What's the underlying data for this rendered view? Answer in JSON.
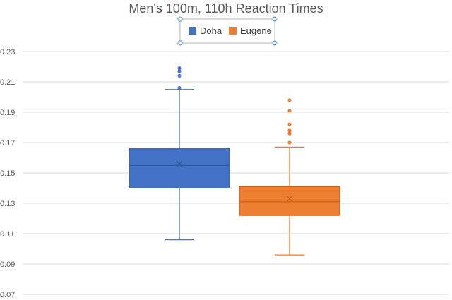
{
  "chart_data": {
    "type": "box",
    "title": "Men's 100m, 110h Reaction Times",
    "xlabel": "",
    "ylabel": "",
    "ylim": [
      0.07,
      0.23
    ],
    "y_ticks": [
      "0.07",
      "0.09",
      "0.11",
      "0.13",
      "0.15",
      "0.17",
      "0.19",
      "0.21",
      "0.23"
    ],
    "grid": true,
    "legend_position": "top",
    "series": [
      {
        "name": "Doha",
        "color": "#4472C4",
        "whisker_low": 0.106,
        "q1": 0.14,
        "median": 0.155,
        "mean": 0.156,
        "q3": 0.166,
        "whisker_high": 0.205,
        "outliers": [
          0.206,
          0.214,
          0.217,
          0.219
        ]
      },
      {
        "name": "Eugene",
        "color": "#ED7D31",
        "whisker_low": 0.096,
        "q1": 0.122,
        "median": 0.131,
        "mean": 0.133,
        "q3": 0.141,
        "whisker_high": 0.167,
        "outliers": [
          0.17,
          0.176,
          0.178,
          0.182,
          0.191,
          0.198
        ]
      }
    ]
  }
}
